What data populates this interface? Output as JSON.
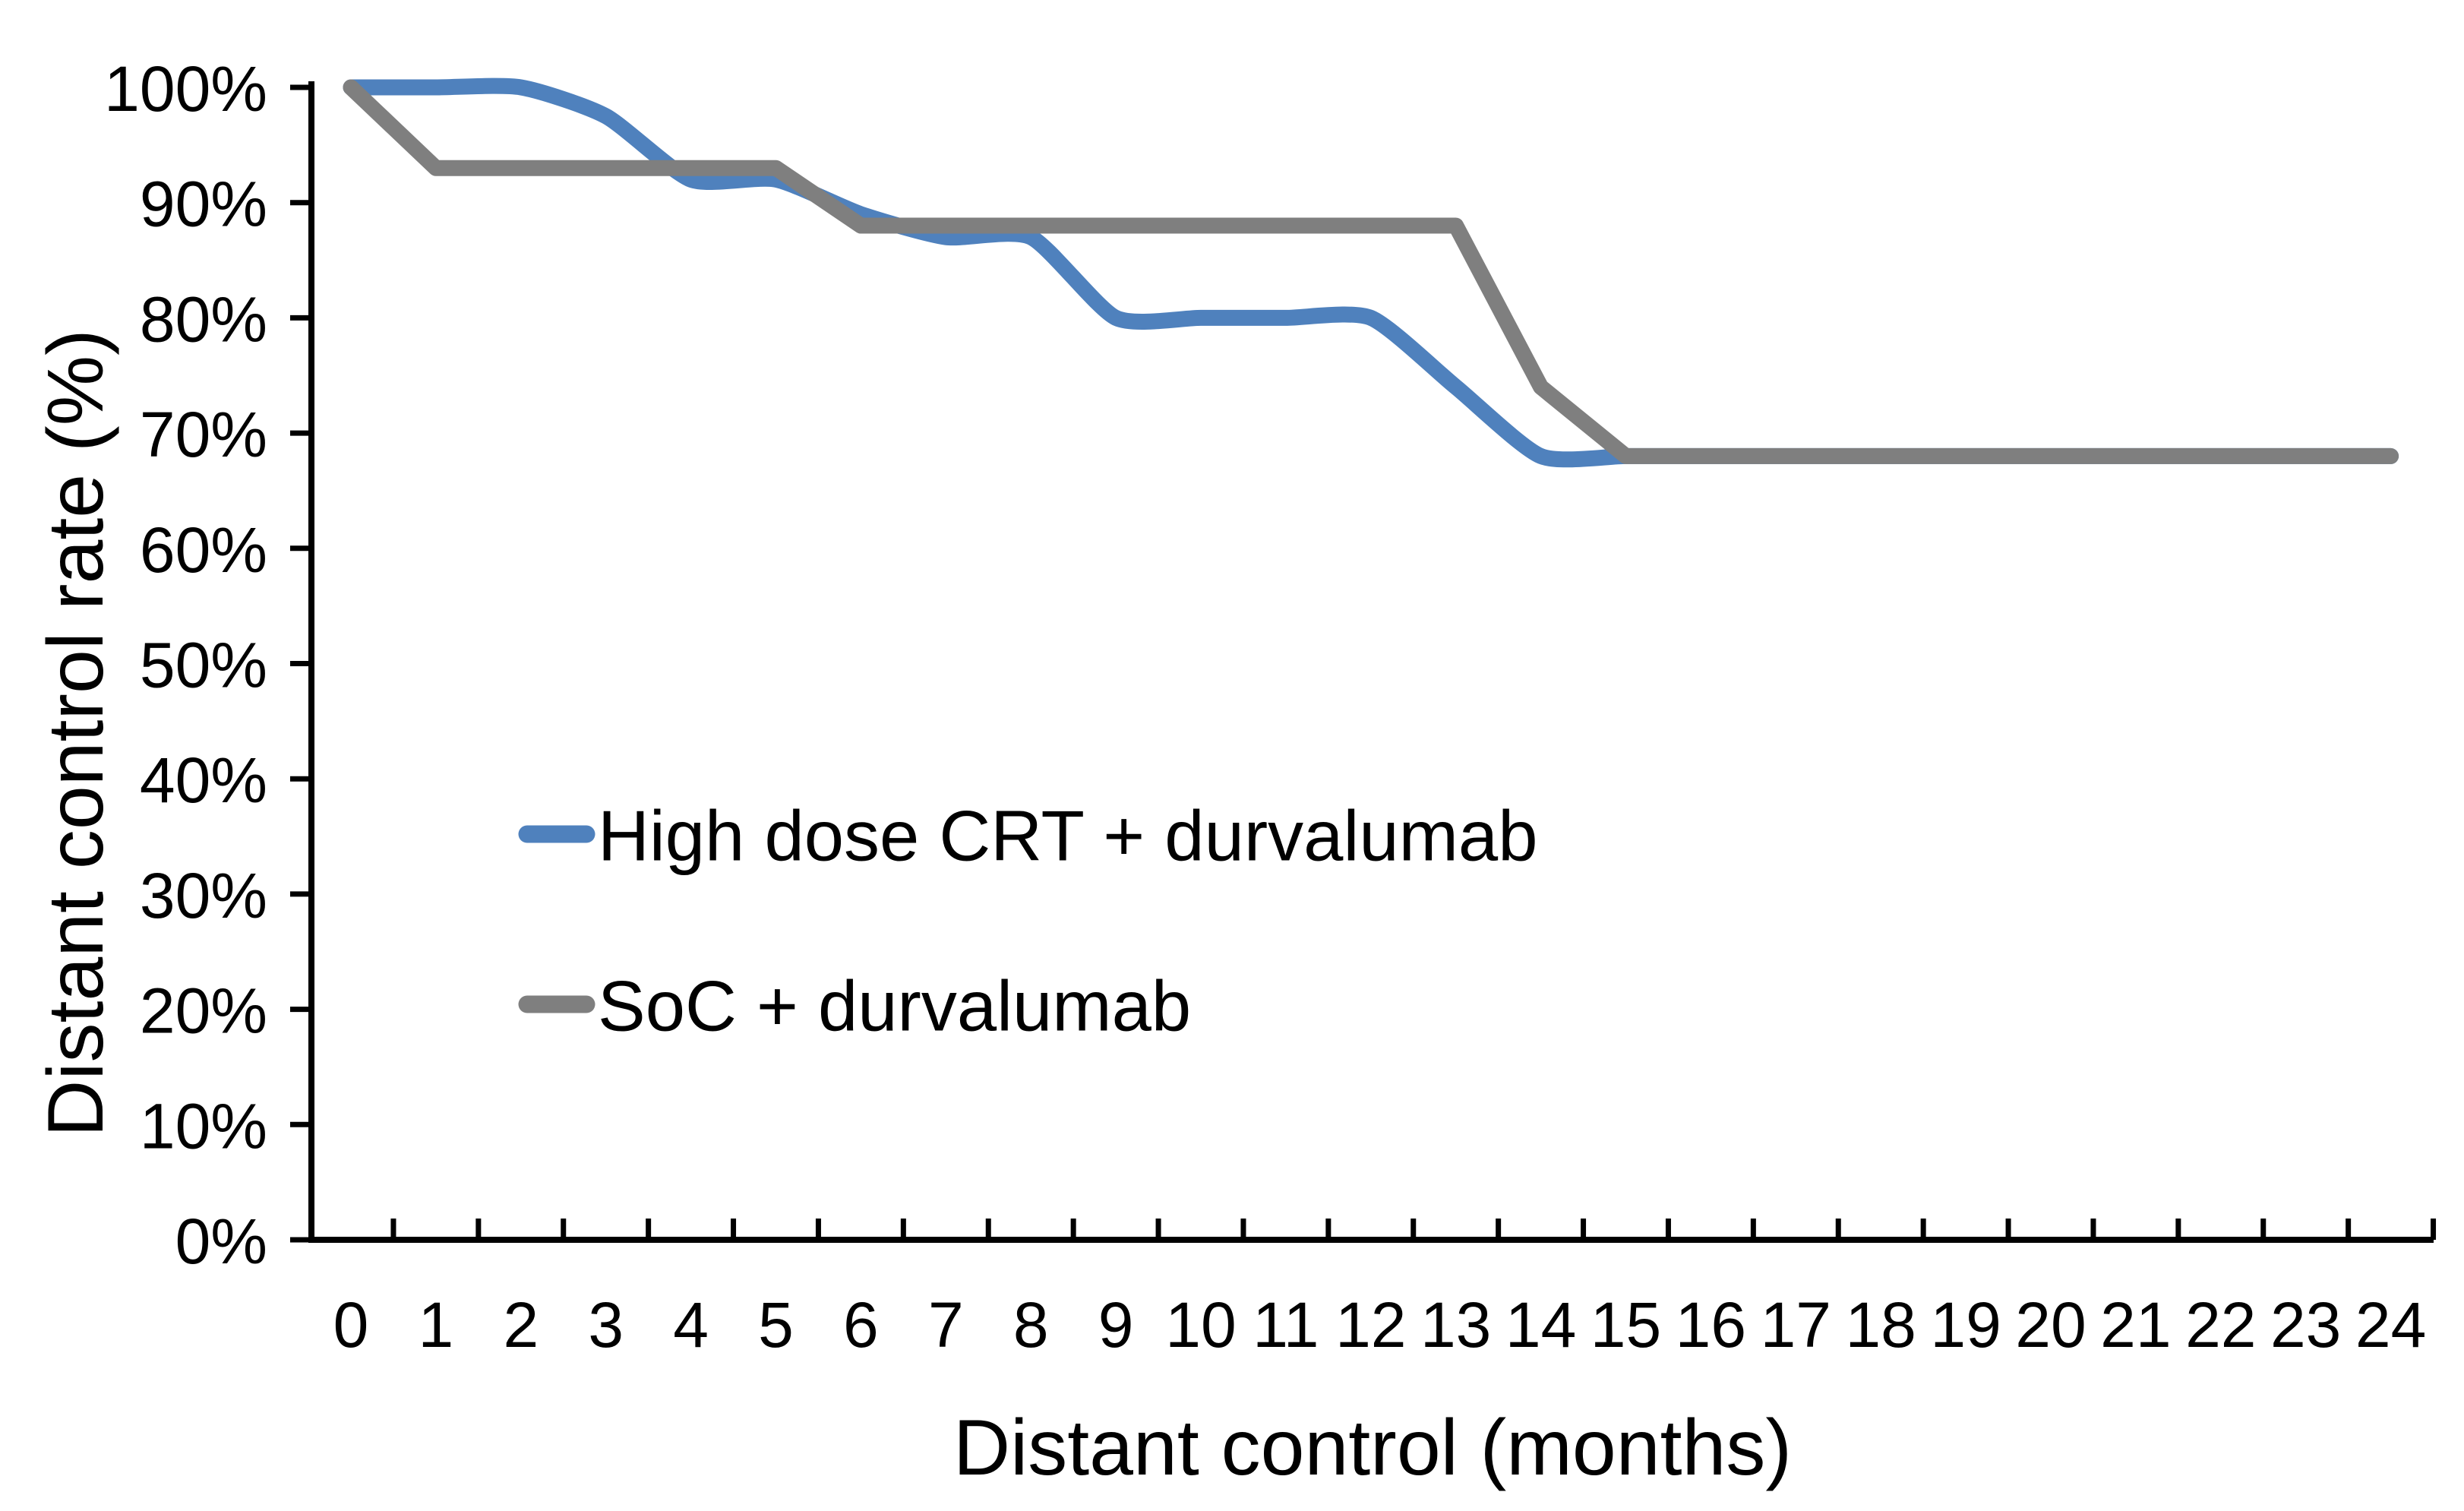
{
  "chart_data": {
    "type": "line",
    "xlabel": "Distant control (months)",
    "ylabel": "Distant control rate (%)",
    "xlim": [
      0,
      24
    ],
    "ylim": [
      0,
      100
    ],
    "grid": false,
    "legend_position": "inside-left-middle",
    "x": [
      0,
      1,
      2,
      3,
      4,
      5,
      6,
      7,
      8,
      9,
      10,
      11,
      12,
      13,
      14,
      15,
      16,
      17,
      18,
      19,
      20,
      21,
      22,
      23,
      24
    ],
    "x_tick_labels": [
      "0",
      "1",
      "2",
      "3",
      "4",
      "5",
      "6",
      "7",
      "8",
      "9",
      "10",
      "11",
      "12",
      "13",
      "14",
      "15",
      "16",
      "17",
      "18",
      "19",
      "20",
      "21",
      "22",
      "23",
      "24"
    ],
    "y_tick_labels": [
      "100%",
      "90%",
      "80%",
      "70%",
      "60%",
      "50%",
      "40%",
      "30%",
      "20%",
      "10%",
      "0%"
    ],
    "y_tick_values": [
      100,
      90,
      80,
      70,
      60,
      50,
      40,
      30,
      20,
      10,
      0
    ],
    "series": [
      {
        "name": "High dose CRT + durvalumab",
        "color": "#4F81BD",
        "smooth": true,
        "values": [
          100,
          100,
          100,
          97.5,
          92,
          92,
          89,
          87,
          87,
          80,
          80,
          80,
          80,
          74,
          68,
          68,
          68,
          68,
          68,
          68,
          68,
          68,
          68,
          68,
          68
        ]
      },
      {
        "name": "SoC + durvalumab",
        "color": "#7F7F7F",
        "smooth": false,
        "values": [
          100,
          93,
          93,
          93,
          93,
          93,
          88,
          88,
          88,
          88,
          88,
          88,
          88,
          88,
          74,
          68,
          68,
          68,
          68,
          68,
          68,
          68,
          68,
          68,
          68
        ]
      }
    ],
    "axis_color": "#000000"
  }
}
